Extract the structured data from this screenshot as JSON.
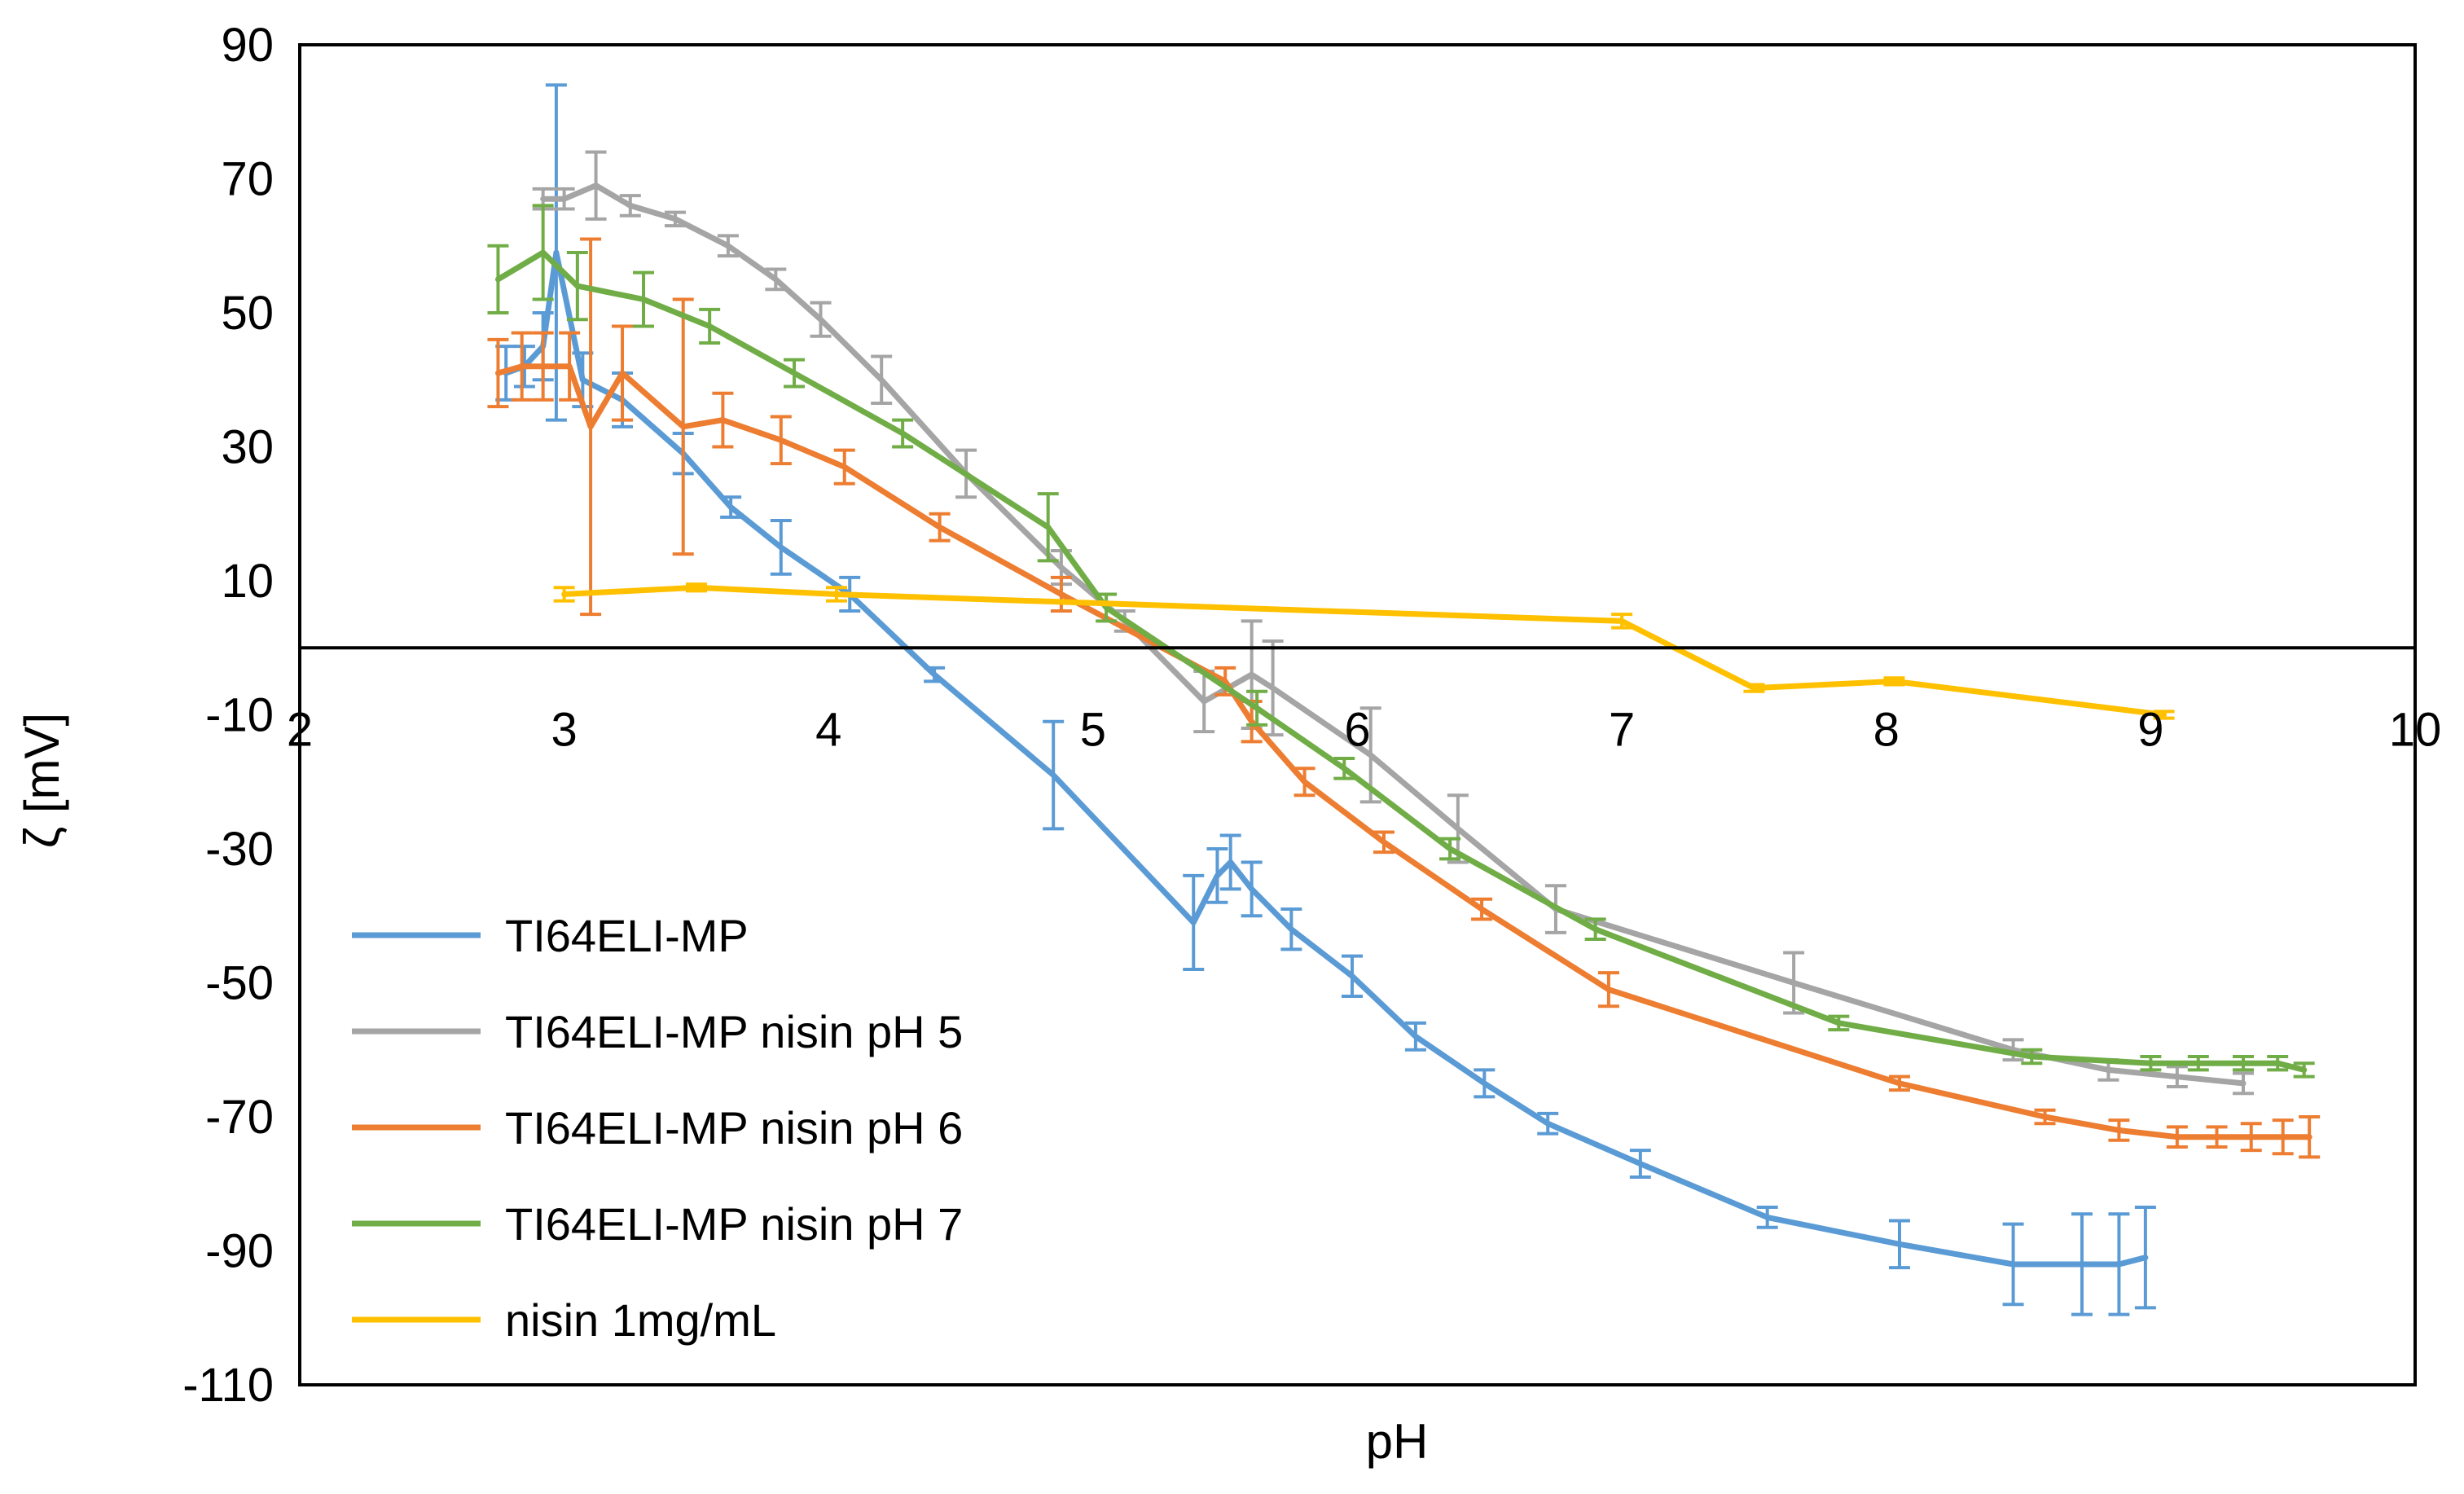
{
  "chart_data": {
    "type": "line",
    "title": "",
    "xlabel": "pH",
    "ylabel": "ζ [mV]",
    "xlim": [
      2,
      10
    ],
    "ylim": [
      -110,
      90
    ],
    "x_ticks": [
      2,
      3,
      4,
      5,
      6,
      7,
      8,
      9,
      10
    ],
    "y_ticks": [
      90,
      70,
      50,
      30,
      10,
      -10,
      -30,
      -50,
      -70,
      -90,
      -110
    ],
    "legend_position": "lower-left",
    "grid": false,
    "series": [
      {
        "name": "TI64ELI-MP",
        "color": "#5B9BD5",
        "points": [
          [
            2.78,
            41,
            4
          ],
          [
            2.85,
            42,
            3
          ],
          [
            2.92,
            45,
            5
          ],
          [
            2.97,
            59,
            25
          ],
          [
            3.07,
            40,
            4
          ],
          [
            3.22,
            37,
            4
          ],
          [
            3.45,
            29,
            3
          ],
          [
            3.63,
            21,
            1.5
          ],
          [
            3.82,
            15,
            4
          ],
          [
            4.08,
            8,
            2.5
          ],
          [
            4.4,
            -4,
            1
          ],
          [
            4.85,
            -19,
            8
          ],
          [
            5.38,
            -41,
            7
          ],
          [
            5.47,
            -34,
            4
          ],
          [
            5.52,
            -32,
            4
          ],
          [
            5.6,
            -36,
            4
          ],
          [
            5.75,
            -42,
            3
          ],
          [
            5.98,
            -49,
            3
          ],
          [
            6.22,
            -58,
            2
          ],
          [
            6.48,
            -65,
            2
          ],
          [
            6.72,
            -71,
            1.5
          ],
          [
            7.07,
            -77,
            2
          ],
          [
            7.55,
            -85,
            1.5
          ],
          [
            8.05,
            -89,
            3.5
          ],
          [
            8.48,
            -92,
            6
          ],
          [
            8.74,
            -92,
            7.5
          ],
          [
            8.88,
            -92,
            7.5
          ],
          [
            8.98,
            -91,
            7.5
          ]
        ]
      },
      {
        "name": "TI64ELI-MP nisin pH 5",
        "color": "#A5A5A5",
        "points": [
          [
            2.92,
            67,
            1.5
          ],
          [
            3.0,
            67,
            1.5
          ],
          [
            3.12,
            69,
            5
          ],
          [
            3.25,
            66,
            1.5
          ],
          [
            3.42,
            64,
            1
          ],
          [
            3.62,
            60,
            1.5
          ],
          [
            3.8,
            55,
            1.5
          ],
          [
            3.97,
            49,
            2.5
          ],
          [
            4.2,
            40,
            3.5
          ],
          [
            4.52,
            26,
            3.5
          ],
          [
            4.88,
            12,
            2.5
          ],
          [
            5.12,
            4,
            1.5
          ],
          [
            5.42,
            -8,
            4.5
          ],
          [
            5.6,
            -4,
            8
          ],
          [
            5.68,
            -6,
            7
          ],
          [
            6.05,
            -16,
            7
          ],
          [
            6.38,
            -27,
            5
          ],
          [
            6.75,
            -39,
            3.5
          ],
          [
            7.65,
            -50,
            4.5
          ],
          [
            8.48,
            -60,
            1.5
          ],
          [
            8.84,
            -63,
            1.5
          ],
          [
            9.1,
            -64,
            1.5
          ],
          [
            9.35,
            -65,
            1.5
          ]
        ]
      },
      {
        "name": "TI64ELI-MP nisin pH 6",
        "color": "#ED7D31",
        "points": [
          [
            2.75,
            41,
            5
          ],
          [
            2.84,
            42,
            5
          ],
          [
            2.92,
            42,
            5
          ],
          [
            3.02,
            42,
            5
          ],
          [
            3.1,
            33,
            28
          ],
          [
            3.22,
            41,
            7
          ],
          [
            3.45,
            33,
            19
          ],
          [
            3.6,
            34,
            4
          ],
          [
            3.82,
            31,
            3.5
          ],
          [
            4.06,
            27,
            2.5
          ],
          [
            4.42,
            18,
            2
          ],
          [
            4.88,
            8,
            2.5
          ],
          [
            5.5,
            -5,
            2
          ],
          [
            5.6,
            -11,
            3
          ],
          [
            5.8,
            -20,
            2
          ],
          [
            6.1,
            -29,
            1.5
          ],
          [
            6.47,
            -39,
            1.5
          ],
          [
            6.95,
            -51,
            2.5
          ],
          [
            8.05,
            -65,
            1
          ],
          [
            8.6,
            -70,
            1
          ],
          [
            8.88,
            -72,
            1.5
          ],
          [
            9.1,
            -73,
            1.5
          ],
          [
            9.25,
            -73,
            1.5
          ],
          [
            9.38,
            -73,
            2
          ],
          [
            9.5,
            -73,
            2.5
          ],
          [
            9.6,
            -73,
            3
          ]
        ]
      },
      {
        "name": "TI64ELI-MP nisin pH 7",
        "color": "#70AD47",
        "points": [
          [
            2.75,
            55,
            5
          ],
          [
            2.92,
            59,
            7
          ],
          [
            3.05,
            54,
            5
          ],
          [
            3.3,
            52,
            4
          ],
          [
            3.55,
            48,
            2.5
          ],
          [
            3.87,
            41,
            2
          ],
          [
            4.28,
            32,
            2
          ],
          [
            4.83,
            18,
            5
          ],
          [
            5.05,
            6,
            2
          ],
          [
            5.62,
            -9,
            2.5
          ],
          [
            5.95,
            -18,
            1.5
          ],
          [
            6.35,
            -30,
            1.5
          ],
          [
            6.9,
            -42,
            1.5
          ],
          [
            7.82,
            -56,
            1
          ],
          [
            8.55,
            -61,
            1
          ],
          [
            9.0,
            -62,
            1
          ],
          [
            9.18,
            -62,
            1
          ],
          [
            9.35,
            -62,
            1
          ],
          [
            9.48,
            -62,
            1
          ],
          [
            9.58,
            -63,
            1
          ]
        ]
      },
      {
        "name": "nisin 1mg/mL",
        "color": "#FFC000",
        "points": [
          [
            3.0,
            8,
            1
          ],
          [
            3.5,
            9,
            0.5
          ],
          [
            4.03,
            8,
            1
          ],
          [
            7.0,
            4,
            1
          ],
          [
            7.5,
            -6,
            0.5
          ],
          [
            8.03,
            -5,
            0.5
          ],
          [
            9.05,
            -10,
            0.5
          ]
        ]
      }
    ]
  }
}
